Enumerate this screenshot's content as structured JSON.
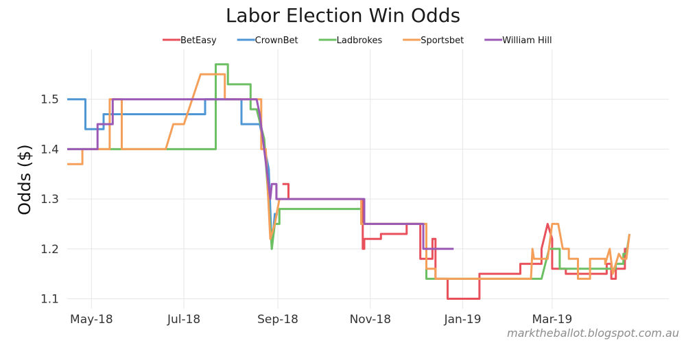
{
  "chart_data": {
    "type": "line",
    "title": "Labor Election Win Odds",
    "xlabel": "",
    "ylabel": "Odds ($)",
    "ylim": [
      1.08,
      1.6
    ],
    "xlim": [
      "2018-04-15",
      "2019-05-17"
    ],
    "x_is_date": true,
    "grid": true,
    "legend_position": "top-center",
    "credit": "marktheballot.blogspot.com.au",
    "x_ticks": [
      {
        "date": "2018-05-01",
        "label": "May-18"
      },
      {
        "date": "2018-07-01",
        "label": "Jul-18"
      },
      {
        "date": "2018-09-01",
        "label": "Sep-18"
      },
      {
        "date": "2018-11-01",
        "label": "Nov-18"
      },
      {
        "date": "2019-01-01",
        "label": "Jan-19"
      },
      {
        "date": "2019-03-01",
        "label": "Mar-19"
      }
    ],
    "y_ticks": [
      {
        "value": 1.1,
        "label": "1.1"
      },
      {
        "value": 1.2,
        "label": "1.2"
      },
      {
        "value": 1.3,
        "label": "1.3"
      },
      {
        "value": 1.4,
        "label": "1.4"
      },
      {
        "value": 1.5,
        "label": "1.5"
      }
    ],
    "series": [
      {
        "name": "BetEasy",
        "color": "#e8505b",
        "segments": [
          [
            [
              "2018-09-04",
              1.33
            ],
            [
              "2018-09-08",
              1.33
            ],
            [
              "2018-09-08",
              1.3
            ]
          ],
          [
            [
              "2018-10-27",
              1.3
            ],
            [
              "2018-10-27",
              1.2
            ],
            [
              "2018-10-28",
              1.2
            ],
            [
              "2018-10-28",
              1.22
            ],
            [
              "2018-11-08",
              1.22
            ],
            [
              "2018-11-08",
              1.23
            ],
            [
              "2018-11-25",
              1.23
            ],
            [
              "2018-11-25",
              1.25
            ],
            [
              "2018-12-04",
              1.25
            ],
            [
              "2018-12-04",
              1.18
            ],
            [
              "2018-12-12",
              1.18
            ],
            [
              "2018-12-12",
              1.22
            ],
            [
              "2018-12-14",
              1.22
            ],
            [
              "2018-12-14",
              1.14
            ],
            [
              "2018-12-22",
              1.14
            ],
            [
              "2018-12-22",
              1.1
            ],
            [
              "2019-01-12",
              1.1
            ],
            [
              "2019-01-12",
              1.15
            ],
            [
              "2019-02-08",
              1.15
            ],
            [
              "2019-02-08",
              1.17
            ],
            [
              "2019-02-22",
              1.17
            ],
            [
              "2019-02-22",
              1.2
            ],
            [
              "2019-02-26",
              1.25
            ],
            [
              "2019-03-01",
              1.22
            ],
            [
              "2019-03-01",
              1.16
            ],
            [
              "2019-03-10",
              1.16
            ],
            [
              "2019-03-10",
              1.15
            ],
            [
              "2019-04-06",
              1.15
            ],
            [
              "2019-04-06",
              1.17
            ],
            [
              "2019-04-09",
              1.17
            ],
            [
              "2019-04-09",
              1.14
            ],
            [
              "2019-04-12",
              1.14
            ],
            [
              "2019-04-12",
              1.16
            ],
            [
              "2019-04-18",
              1.16
            ],
            [
              "2019-04-18",
              1.2
            ],
            [
              "2019-04-20",
              1.2
            ]
          ]
        ]
      },
      {
        "name": "CrownBet",
        "color": "#4e96d4",
        "segments": [
          [
            [
              "2018-04-15",
              1.5
            ],
            [
              "2018-04-27",
              1.5
            ],
            [
              "2018-04-27",
              1.44
            ],
            [
              "2018-05-09",
              1.44
            ],
            [
              "2018-05-09",
              1.47
            ],
            [
              "2018-07-15",
              1.47
            ],
            [
              "2018-07-15",
              1.5
            ],
            [
              "2018-07-30",
              1.5
            ],
            [
              "2018-07-30",
              1.5
            ],
            [
              "2018-08-08",
              1.5
            ],
            [
              "2018-08-08",
              1.45
            ],
            [
              "2018-08-20",
              1.45
            ],
            [
              "2018-08-26",
              1.36
            ],
            [
              "2018-08-28",
              1.2
            ],
            [
              "2018-08-30",
              1.27
            ],
            [
              "2018-09-01",
              1.27
            ]
          ]
        ]
      },
      {
        "name": "Ladbrokes",
        "color": "#6cbf62",
        "segments": [
          [
            [
              "2018-04-15",
              1.4
            ],
            [
              "2018-07-22",
              1.4
            ],
            [
              "2018-07-22",
              1.57
            ],
            [
              "2018-07-30",
              1.57
            ],
            [
              "2018-07-30",
              1.53
            ],
            [
              "2018-08-14",
              1.53
            ],
            [
              "2018-08-14",
              1.48
            ],
            [
              "2018-08-18",
              1.48
            ],
            [
              "2018-08-23",
              1.42
            ],
            [
              "2018-08-28",
              1.2
            ],
            [
              "2018-08-30",
              1.25
            ],
            [
              "2018-09-02",
              1.25
            ],
            [
              "2018-09-02",
              1.28
            ],
            [
              "2018-10-26",
              1.28
            ],
            [
              "2018-10-26",
              1.25
            ],
            [
              "2018-12-08",
              1.25
            ],
            [
              "2018-12-08",
              1.14
            ],
            [
              "2019-02-22",
              1.14
            ],
            [
              "2019-02-27",
              1.2
            ],
            [
              "2019-03-06",
              1.2
            ],
            [
              "2019-03-06",
              1.16
            ],
            [
              "2019-04-12",
              1.16
            ],
            [
              "2019-04-12",
              1.17
            ],
            [
              "2019-04-17",
              1.17
            ],
            [
              "2019-04-17",
              1.19
            ],
            [
              "2019-04-19",
              1.19
            ],
            [
              "2019-04-21",
              1.23
            ]
          ]
        ]
      },
      {
        "name": "Sportsbet",
        "color": "#f5a05a",
        "segments": [
          [
            [
              "2018-04-15",
              1.37
            ],
            [
              "2018-04-25",
              1.37
            ],
            [
              "2018-04-25",
              1.4
            ],
            [
              "2018-05-13",
              1.4
            ],
            [
              "2018-05-13",
              1.5
            ],
            [
              "2018-05-21",
              1.5
            ],
            [
              "2018-05-21",
              1.4
            ],
            [
              "2018-06-19",
              1.4
            ],
            [
              "2018-06-24",
              1.45
            ],
            [
              "2018-07-01",
              1.45
            ],
            [
              "2018-07-12",
              1.55
            ],
            [
              "2018-07-28",
              1.55
            ],
            [
              "2018-07-28",
              1.5
            ],
            [
              "2018-08-21",
              1.5
            ],
            [
              "2018-08-21",
              1.4
            ],
            [
              "2018-08-24",
              1.4
            ],
            [
              "2018-08-27",
              1.22
            ],
            [
              "2018-08-30",
              1.25
            ],
            [
              "2018-09-02",
              1.3
            ],
            [
              "2018-10-26",
              1.3
            ],
            [
              "2018-10-26",
              1.25
            ],
            [
              "2018-12-08",
              1.25
            ],
            [
              "2018-12-08",
              1.16
            ],
            [
              "2018-12-14",
              1.16
            ],
            [
              "2018-12-14",
              1.14
            ],
            [
              "2019-02-15",
              1.14
            ],
            [
              "2019-02-16",
              1.2
            ],
            [
              "2019-02-17",
              1.18
            ],
            [
              "2019-02-26",
              1.18
            ],
            [
              "2019-03-01",
              1.25
            ],
            [
              "2019-03-05",
              1.25
            ],
            [
              "2019-03-08",
              1.2
            ],
            [
              "2019-03-12",
              1.2
            ],
            [
              "2019-03-12",
              1.18
            ],
            [
              "2019-03-18",
              1.18
            ],
            [
              "2019-03-18",
              1.14
            ],
            [
              "2019-03-26",
              1.14
            ],
            [
              "2019-03-26",
              1.18
            ],
            [
              "2019-04-05",
              1.18
            ],
            [
              "2019-04-05",
              1.17
            ],
            [
              "2019-04-08",
              1.2
            ],
            [
              "2019-04-10",
              1.15
            ],
            [
              "2019-04-14",
              1.19
            ],
            [
              "2019-04-16",
              1.18
            ],
            [
              "2019-04-19",
              1.18
            ],
            [
              "2019-04-21",
              1.23
            ]
          ]
        ]
      },
      {
        "name": "William Hill",
        "color": "#9b59b6",
        "segments": [
          [
            [
              "2018-04-15",
              1.4
            ],
            [
              "2018-05-05",
              1.4
            ],
            [
              "2018-05-05",
              1.45
            ],
            [
              "2018-05-15",
              1.45
            ],
            [
              "2018-05-15",
              1.5
            ],
            [
              "2018-08-18",
              1.5
            ],
            [
              "2018-08-20",
              1.47
            ],
            [
              "2018-08-25",
              1.35
            ],
            [
              "2018-08-27",
              1.3
            ],
            [
              "2018-08-28",
              1.33
            ],
            [
              "2018-08-31",
              1.33
            ],
            [
              "2018-08-31",
              1.3
            ],
            [
              "2018-10-28",
              1.3
            ],
            [
              "2018-10-28",
              1.25
            ],
            [
              "2018-12-06",
              1.25
            ],
            [
              "2018-12-06",
              1.2
            ],
            [
              "2018-12-26",
              1.2
            ]
          ]
        ]
      }
    ]
  }
}
